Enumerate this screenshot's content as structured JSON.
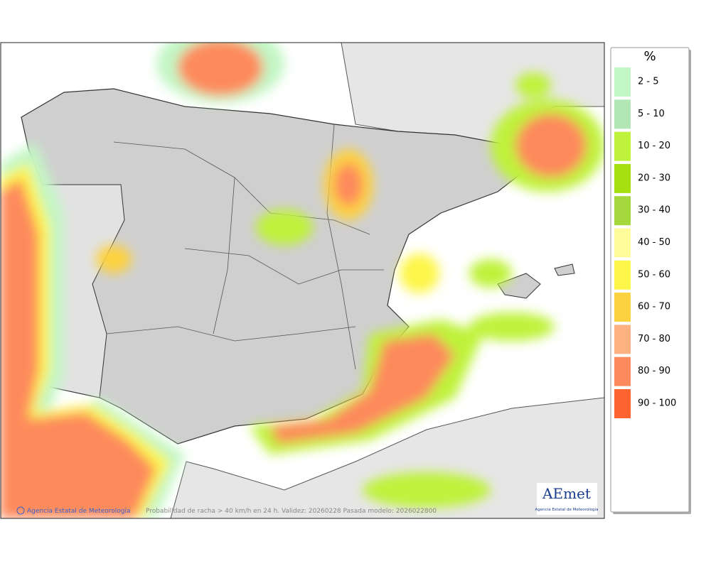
{
  "legend": {
    "title": "%",
    "items": [
      {
        "label": "2 - 5",
        "color": "#c2f6c4"
      },
      {
        "label": "5 - 10",
        "color": "#b2e6b4"
      },
      {
        "label": "10 - 20",
        "color": "#bff23a"
      },
      {
        "label": "20 - 30",
        "color": "#a6e010"
      },
      {
        "label": "30 - 40",
        "color": "#a4d83c"
      },
      {
        "label": "40 - 50",
        "color": "#fdfb9a"
      },
      {
        "label": "50 - 60",
        "color": "#fdf64a"
      },
      {
        "label": "60 - 70",
        "color": "#fdd240"
      },
      {
        "label": "70 - 80",
        "color": "#fdb080"
      },
      {
        "label": "80 - 90",
        "color": "#fd8a5c"
      },
      {
        "label": "90 - 100",
        "color": "#fd6432"
      }
    ]
  },
  "footer": {
    "copyright": "Agencia Estatal de Meteorología",
    "caption": "Probabilidad de racha > 40 km/h en 24 h. Validez: 20260228 Pasada modelo: 2026022800"
  },
  "logo": {
    "name": "AEmet",
    "subtitle": "Agencia Estatal de Meteorología"
  }
}
